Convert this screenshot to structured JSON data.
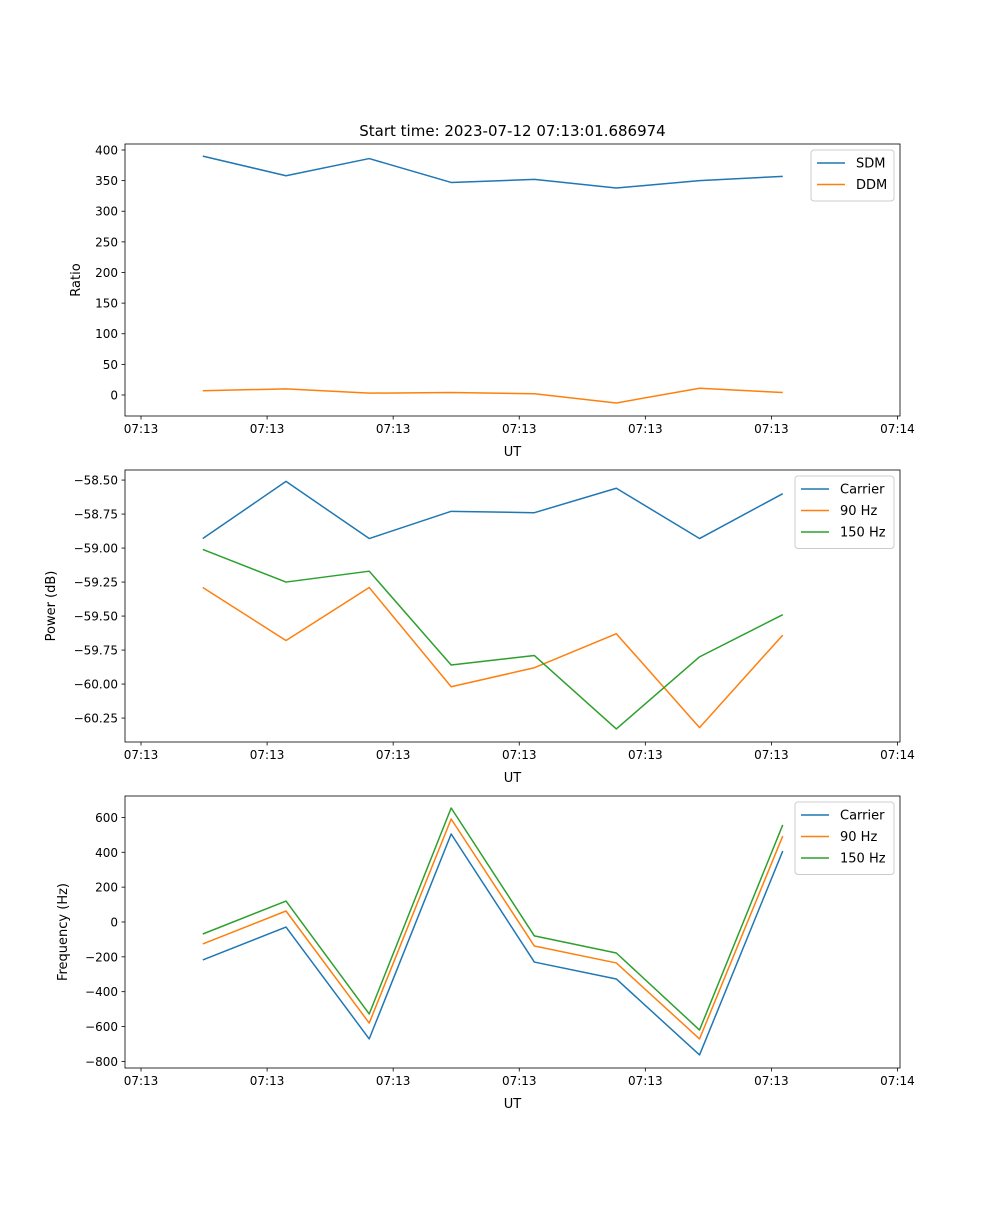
{
  "chart_data": [
    {
      "type": "line",
      "title": "Start time: 2023-07-12 07:13:01.686974",
      "xlabel": "UT",
      "ylabel": "Ratio",
      "x_seconds_after_0713": [
        4.9,
        11.5,
        18.1,
        24.6,
        31.2,
        37.7,
        44.3,
        50.9
      ],
      "xlim": [
        -1.27,
        60.2
      ],
      "xticks": [
        0,
        10,
        20,
        30,
        40,
        50,
        60
      ],
      "xtick_labels": [
        "07:13",
        "07:13",
        "07:13",
        "07:13",
        "07:13",
        "07:13",
        "07:14"
      ],
      "ylim": [
        -34.3,
        409.8
      ],
      "yticks": [
        0,
        50,
        100,
        150,
        200,
        250,
        300,
        350,
        400
      ],
      "ytick_labels": [
        "0",
        "50",
        "100",
        "150",
        "200",
        "250",
        "300",
        "350",
        "400"
      ],
      "legend": "top-right",
      "series": [
        {
          "name": "SDM",
          "color": "#1f77b4",
          "values": [
            390,
            358,
            386,
            347,
            352,
            338,
            350,
            357
          ]
        },
        {
          "name": "DDM",
          "color": "#ff7f0e",
          "values": [
            7,
            10,
            3,
            4,
            2,
            -13,
            11,
            4
          ]
        }
      ]
    },
    {
      "type": "line",
      "title": "",
      "xlabel": "UT",
      "ylabel": "Power (dB)",
      "x_seconds_after_0713": [
        4.9,
        11.5,
        18.1,
        24.6,
        31.2,
        37.7,
        44.3,
        50.9
      ],
      "xlim": [
        -1.27,
        60.2
      ],
      "xticks": [
        0,
        10,
        20,
        30,
        40,
        50,
        60
      ],
      "xtick_labels": [
        "07:13",
        "07:13",
        "07:13",
        "07:13",
        "07:13",
        "07:13",
        "07:14"
      ],
      "ylim": [
        -60.426,
        -58.426
      ],
      "yticks": [
        -60.25,
        -60.0,
        -59.75,
        -59.5,
        -59.25,
        -59.0,
        -58.75,
        -58.5
      ],
      "ytick_labels": [
        "−60.25",
        "−60.00",
        "−59.75",
        "−59.50",
        "−59.25",
        "−59.00",
        "−58.75",
        "−58.50"
      ],
      "legend": "top-right",
      "series": [
        {
          "name": "Carrier",
          "color": "#1f77b4",
          "values": [
            -58.93,
            -58.51,
            -58.93,
            -58.73,
            -58.74,
            -58.56,
            -58.93,
            -58.6
          ]
        },
        {
          "name": "90 Hz",
          "color": "#ff7f0e",
          "values": [
            -59.29,
            -59.68,
            -59.29,
            -60.02,
            -59.88,
            -59.63,
            -60.32,
            -59.64
          ]
        },
        {
          "name": "150 Hz",
          "color": "#2ca02c",
          "values": [
            -59.01,
            -59.25,
            -59.17,
            -59.86,
            -59.79,
            -60.33,
            -59.8,
            -59.49
          ]
        }
      ]
    },
    {
      "type": "line",
      "title": "",
      "xlabel": "UT",
      "ylabel": "Frequency (Hz)",
      "x_seconds_after_0713": [
        4.9,
        11.5,
        18.1,
        24.6,
        31.2,
        37.7,
        44.3,
        50.9
      ],
      "xlim": [
        -1.27,
        60.2
      ],
      "xticks": [
        0,
        10,
        20,
        30,
        40,
        50,
        60
      ],
      "xtick_labels": [
        "07:13",
        "07:13",
        "07:13",
        "07:13",
        "07:13",
        "07:13",
        "07:14"
      ],
      "ylim": [
        -838,
        723
      ],
      "yticks": [
        -800,
        -600,
        -400,
        -200,
        0,
        200,
        400,
        600
      ],
      "ytick_labels": [
        "−800",
        "−600",
        "−400",
        "−200",
        "0",
        "200",
        "400",
        "600"
      ],
      "legend": "top-right",
      "series": [
        {
          "name": "Carrier",
          "color": "#1f77b4",
          "values": [
            -218,
            -29,
            -671,
            505,
            -230,
            -327,
            -763,
            407
          ]
        },
        {
          "name": "90 Hz",
          "color": "#ff7f0e",
          "values": [
            -126,
            63,
            -580,
            591,
            -138,
            -235,
            -671,
            493
          ]
        },
        {
          "name": "150 Hz",
          "color": "#2ca02c",
          "values": [
            -69,
            120,
            -528,
            654,
            -80,
            -178,
            -620,
            557
          ]
        }
      ]
    }
  ]
}
